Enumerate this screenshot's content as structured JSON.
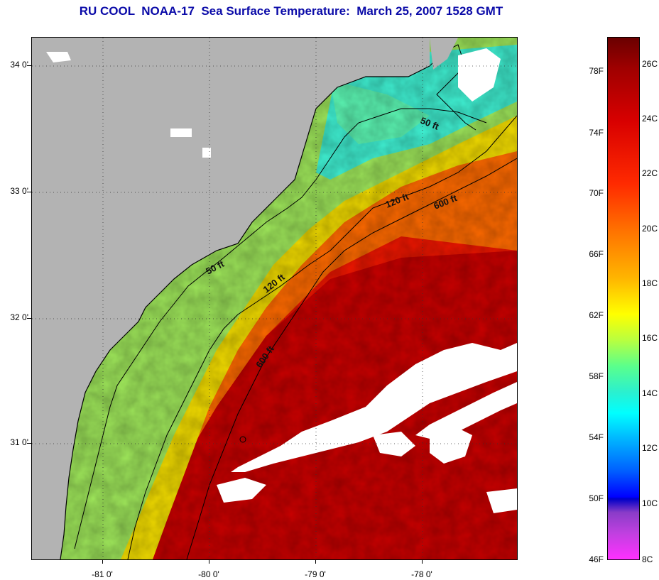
{
  "title": "RU COOL  NOAA-17  Sea Surface Temperature:  March 25, 2007 1528 GMT",
  "map": {
    "latitude_labels": [
      "34 0'",
      "33 0'",
      "32 0'",
      "31 0'"
    ],
    "longitude_labels": [
      "-81 0'",
      "-80 0'",
      "-79 0'",
      "-78 0'"
    ],
    "isobath_labels": [
      "50 ft",
      "120 ft",
      "600 ft",
      "50 ft",
      "120 ft",
      "600 ft"
    ],
    "colors": {
      "land": "#b3b3b3",
      "cloud": "#ffffff",
      "warm": "#d80000",
      "cool": "#2af0d0"
    }
  },
  "colorbar": {
    "fahrenheit_labels": [
      "78F",
      "74F",
      "70F",
      "66F",
      "62F",
      "58F",
      "54F",
      "50F",
      "46F"
    ],
    "celsius_labels": [
      "26C",
      "24C",
      "22C",
      "20C",
      "18C",
      "16C",
      "14C",
      "12C",
      "10C",
      "8C"
    ]
  }
}
